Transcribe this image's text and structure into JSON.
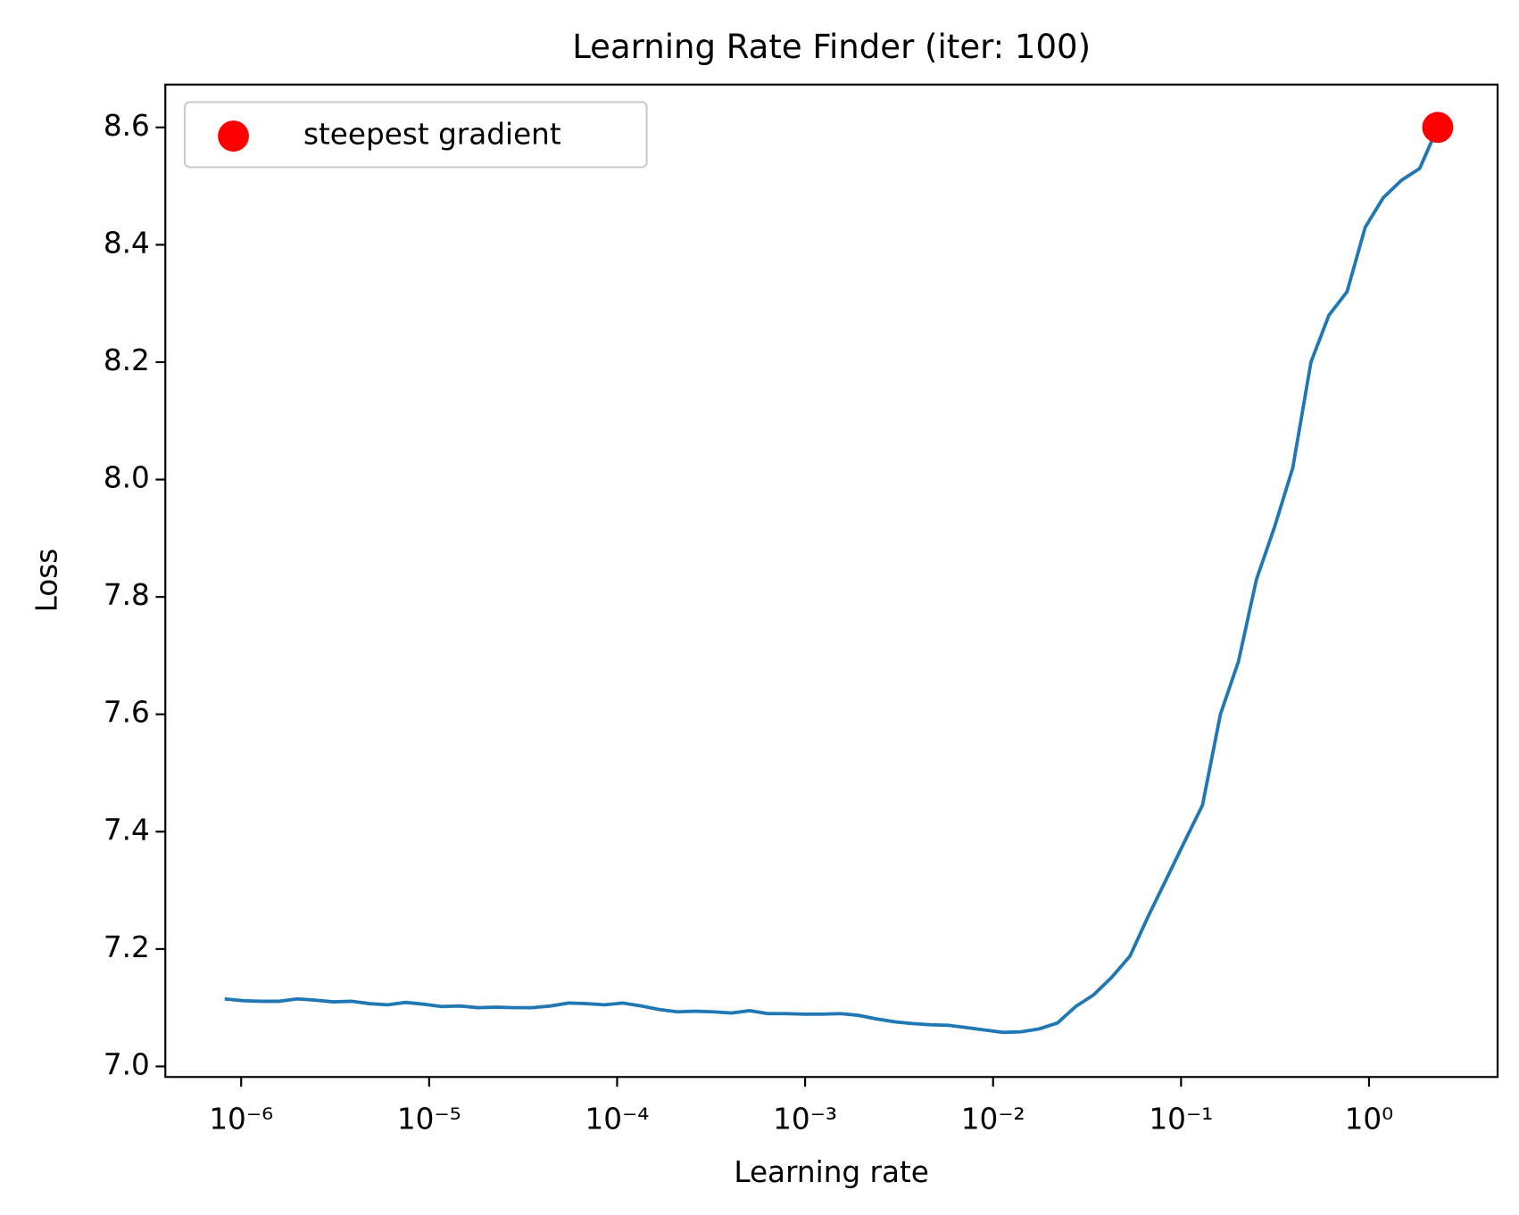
{
  "chart_data": {
    "type": "line",
    "title": "Learning Rate Finder (iter: 100)",
    "x_label": "Learning rate",
    "y_label": "Loss",
    "x_scale": "log",
    "legend": "upper left",
    "grid": false,
    "x": [
      8.17e-07,
      1.02e-06,
      1.27e-06,
      1.59e-06,
      1.98e-06,
      2.47e-06,
      3.09e-06,
      3.86e-06,
      4.81e-06,
      6.01e-06,
      7.5e-06,
      9.36e-06,
      1.17e-05,
      1.46e-05,
      1.82e-05,
      2.27e-05,
      2.84e-05,
      3.54e-05,
      4.42e-05,
      5.52e-05,
      6.89e-05,
      8.6e-05,
      0.000107,
      0.000134,
      0.000167,
      0.000209,
      0.000261,
      0.000325,
      0.000406,
      0.000507,
      0.000633,
      0.00079,
      0.000986,
      0.00123,
      0.00154,
      0.00192,
      0.00239,
      0.00299,
      0.00373,
      0.00466,
      0.00581,
      0.00726,
      0.00906,
      0.0113,
      0.0141,
      0.0176,
      0.022,
      0.0275,
      0.0343,
      0.0428,
      0.0535,
      0.0667,
      0.0832,
      0.104,
      0.13,
      0.162,
      0.202,
      0.252,
      0.315,
      0.393,
      0.491,
      0.612,
      0.764,
      0.955,
      1.19,
      1.49,
      1.86,
      2.32
    ],
    "series": [
      {
        "color": "#1f77b4",
        "values": [
          7.115,
          7.112,
          7.111,
          7.111,
          7.115,
          7.113,
          7.11,
          7.111,
          7.107,
          7.105,
          7.109,
          7.106,
          7.102,
          7.103,
          7.1,
          7.101,
          7.1,
          7.1,
          7.103,
          7.108,
          7.107,
          7.105,
          7.108,
          7.103,
          7.097,
          7.093,
          7.094,
          7.093,
          7.091,
          7.095,
          7.09,
          7.09,
          7.089,
          7.089,
          7.09,
          7.087,
          7.081,
          7.076,
          7.073,
          7.071,
          7.07,
          7.066,
          7.062,
          7.058,
          7.059,
          7.064,
          7.074,
          7.102,
          7.122,
          7.152,
          7.188,
          7.255,
          7.318,
          7.382,
          7.445,
          7.6,
          7.69,
          7.83,
          7.92,
          8.02,
          8.2,
          8.28,
          8.32,
          8.43,
          8.48,
          8.51,
          8.53,
          8.6
        ]
      }
    ],
    "points": [
      {
        "name": "steepest gradient",
        "color": "#ff0000",
        "x": 2.32,
        "y": 8.6
      }
    ],
    "xlim": [
      3.95e-07,
      4.83
    ],
    "ylim": [
      6.982,
      8.673
    ],
    "xticks": [
      {
        "value": 1e-06,
        "label": "10⁻⁶"
      },
      {
        "value": 1e-05,
        "label": "10⁻⁵"
      },
      {
        "value": 0.0001,
        "label": "10⁻⁴"
      },
      {
        "value": 0.001,
        "label": "10⁻³"
      },
      {
        "value": 0.01,
        "label": "10⁻²"
      },
      {
        "value": 0.1,
        "label": "10⁻¹"
      },
      {
        "value": 1,
        "label": "10⁰"
      }
    ],
    "yticks": [
      {
        "value": 7.0,
        "label": "7.0"
      },
      7.2,
      7.4,
      7.6,
      7.8,
      {
        "value": 8.0,
        "label": "8.0"
      },
      8.2,
      8.4,
      8.6
    ]
  }
}
